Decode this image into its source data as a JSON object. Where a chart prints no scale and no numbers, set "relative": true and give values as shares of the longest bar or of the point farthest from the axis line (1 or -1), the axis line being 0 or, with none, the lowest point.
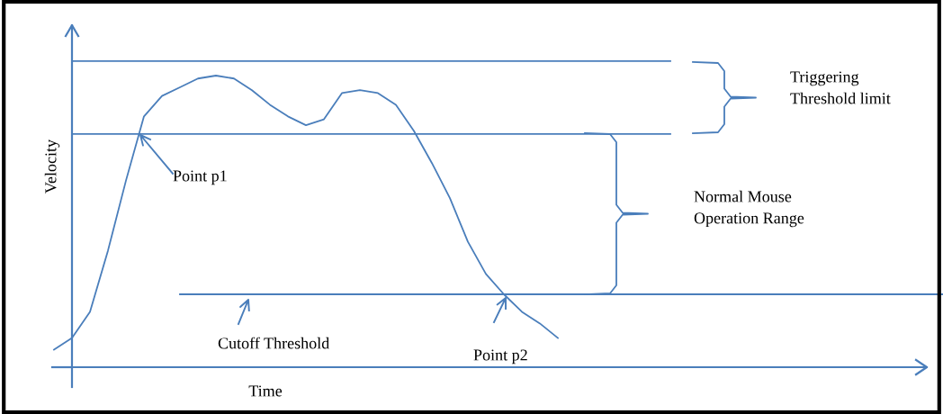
{
  "chart_data": {
    "type": "line",
    "relative": true,
    "xlabel": "Time",
    "ylabel": "Velocity",
    "categories": [
      null,
      null,
      null,
      null,
      null,
      null,
      null,
      null,
      null,
      null,
      null,
      null,
      null,
      null,
      null,
      null,
      null,
      null,
      null,
      null,
      null,
      null,
      null,
      null,
      null,
      null,
      null,
      null,
      null
    ],
    "series": [
      {
        "color": "#4a7ebb",
        "values": [
          0.06,
          0.1,
          0.19,
          0.4,
          0.64,
          0.86,
          0.93,
          0.96,
          0.99,
          1,
          0.99,
          0.95,
          0.9,
          0.86,
          0.83,
          0.85,
          0.94,
          0.95,
          0.94,
          0.9,
          0.81,
          0.7,
          0.58,
          0.43,
          0.32,
          0.25,
          0.19,
          0.15,
          0.1
        ]
      }
    ],
    "ref_lines": [
      {
        "axis": "y",
        "value": 1.05,
        "color": "#4a7ebb"
      },
      {
        "axis": "y",
        "value": 0.8,
        "color": "#4a7ebb"
      },
      {
        "axis": "y",
        "value": 0.25,
        "label": "Cutoff Threshold",
        "color": "#4a7ebb"
      }
    ],
    "annotations": [
      "Point p1",
      "Point p2",
      "Triggering\nThreshold limit",
      "Normal Mouse\nOperation Range"
    ],
    "marker": "none",
    "line_style": "solid"
  }
}
